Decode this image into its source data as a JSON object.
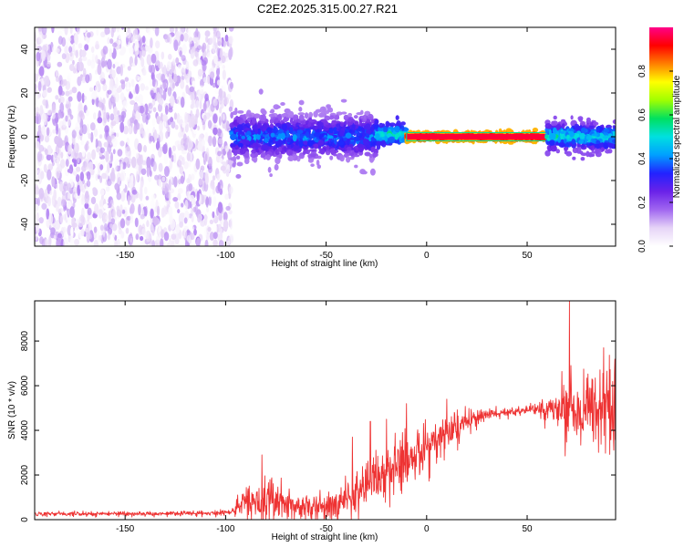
{
  "title": "C2E2.2025.315.00.27.R21",
  "colors": {
    "snr_line": "#ee3333",
    "spectral_colormap": [
      "#ffffff",
      "#e6d4f7",
      "#a066f0",
      "#6a22e8",
      "#2222ff",
      "#00a0ff",
      "#00e0e0",
      "#00e060",
      "#a0ff00",
      "#ffff00",
      "#ff8000",
      "#ff0000",
      "#ff0088"
    ]
  },
  "chart_data": [
    {
      "type": "heatmap",
      "xlabel": "Height of straight line (km)",
      "ylabel": "Frequency (Hz)",
      "xlim": [
        -195,
        94
      ],
      "ylim": [
        -50,
        50
      ],
      "xticks": [
        -150,
        -100,
        -50,
        0,
        50
      ],
      "yticks": [
        -40,
        -20,
        0,
        20,
        40
      ],
      "colorbar": {
        "label": "Normalized spectral amplitude",
        "range": [
          0,
          1
        ],
        "ticks": [
          0.0,
          0.2,
          0.4,
          0.6,
          0.8
        ]
      },
      "regions": [
        {
          "x_range": [
            -195,
            -97
          ],
          "freq_spread": [
            -50,
            50
          ],
          "amplitude": [
            0.0,
            0.15
          ],
          "description": "diffuse speckle noise"
        },
        {
          "x_range": [
            -97,
            -25
          ],
          "freq_spread": [
            -10,
            10
          ],
          "amplitude": [
            0.15,
            0.45
          ]
        },
        {
          "x_range": [
            -25,
            -10
          ],
          "freq_spread": [
            -3,
            5
          ],
          "amplitude": [
            0.3,
            0.6
          ]
        },
        {
          "x_range": [
            -10,
            60
          ],
          "freq_spread": [
            -1.5,
            1.5
          ],
          "amplitude": [
            0.8,
            0.95
          ]
        },
        {
          "x_range": [
            60,
            94
          ],
          "freq_spread": [
            -6,
            6
          ],
          "amplitude": [
            0.2,
            0.6
          ]
        }
      ]
    },
    {
      "type": "line",
      "xlabel": "Height of straight line (km)",
      "ylabel": "SNR (10 * v/v)",
      "xlim": [
        -195,
        94
      ],
      "ylim": [
        0,
        9800
      ],
      "xticks": [
        -150,
        -100,
        -50,
        0,
        50
      ],
      "yticks": [
        0,
        2000,
        4000,
        6000,
        8000
      ],
      "envelope": {
        "x": [
          -195,
          -120,
          -97,
          -90,
          -80,
          -70,
          -60,
          -50,
          -40,
          -30,
          -20,
          -10,
          0,
          10,
          20,
          30,
          40,
          50,
          55,
          60,
          70,
          80,
          94
        ],
        "y": [
          250,
          280,
          300,
          800,
          900,
          700,
          500,
          600,
          1000,
          1500,
          2100,
          2700,
          3300,
          3900,
          4400,
          4700,
          4800,
          4900,
          5000,
          4900,
          5000,
          5000,
          5000
        ],
        "noise": [
          80,
          80,
          100,
          600,
          700,
          600,
          400,
          500,
          700,
          900,
          900,
          900,
          800,
          700,
          500,
          200,
          150,
          150,
          250,
          500,
          1200,
          1300,
          1400
        ]
      },
      "peaks": [
        {
          "x": -82,
          "y": 2900
        },
        {
          "x": -37,
          "y": 3700
        },
        {
          "x": -28,
          "y": 4400
        },
        {
          "x": -20,
          "y": 4500
        },
        {
          "x": -10,
          "y": 5200
        },
        {
          "x": 10,
          "y": 5400
        },
        {
          "x": 71,
          "y": 9800
        },
        {
          "x": 88,
          "y": 7700
        }
      ]
    }
  ]
}
